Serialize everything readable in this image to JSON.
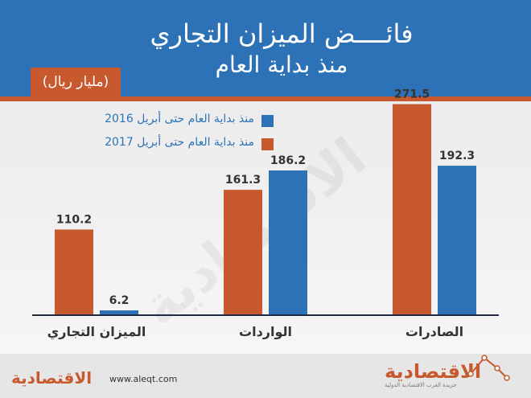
{
  "chart_data": {
    "type": "bar",
    "title": "فائــــض الميزان التجاري",
    "subtitle": "منذ بداية العام",
    "unit": "(مليار ريال)",
    "categories": [
      "الميزان التجاري",
      "الواردات",
      "الصادرات"
    ],
    "series": [
      {
        "name": "منذ بداية العام حتى أبريل 2017",
        "color": "#c8582e",
        "values": [
          110.2,
          161.3,
          271.5
        ]
      },
      {
        "name": "منذ بداية العام حتى أبريل 2016",
        "color": "#2d72b7",
        "values": [
          6.2,
          186.2,
          192.3
        ]
      }
    ],
    "ylim": [
      0,
      300
    ],
    "grid": false,
    "legend_position": "top-left"
  },
  "watermark": "الاقتصادية",
  "footer": {
    "url": "www.aleqt.com",
    "logo": "الاقتصادية",
    "tagline": "جريدة العرب الاقتصادية الدولية"
  }
}
